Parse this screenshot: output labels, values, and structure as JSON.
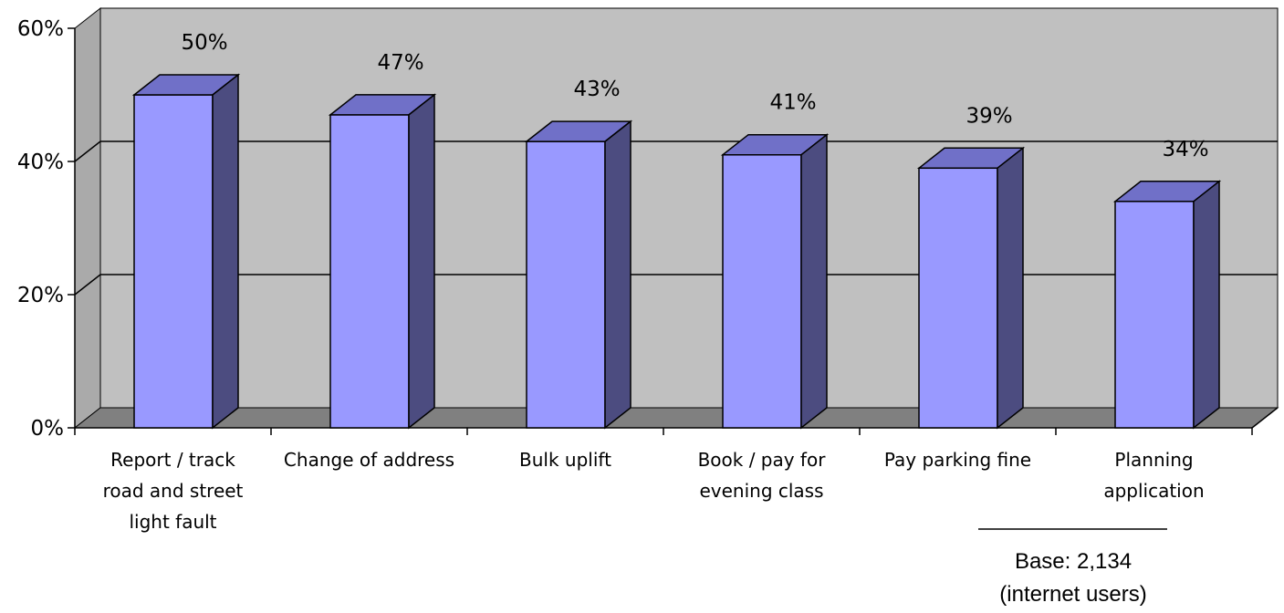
{
  "chart_data": {
    "type": "bar",
    "categories": [
      [
        "Report / track",
        "road and street",
        "light fault"
      ],
      [
        "Change of address"
      ],
      [
        "Bulk uplift"
      ],
      [
        "Book / pay for",
        "evening class"
      ],
      [
        "Pay parking fine"
      ],
      [
        "Planning",
        "application"
      ]
    ],
    "values": [
      50,
      47,
      43,
      41,
      39,
      34
    ],
    "value_labels": [
      "50%",
      "47%",
      "43%",
      "41%",
      "39%",
      "34%"
    ],
    "y_ticks": [
      "0%",
      "20%",
      "40%",
      "60%"
    ],
    "ylim": [
      0,
      60
    ],
    "grid": true,
    "three_d": true,
    "colors": {
      "bar_front": "#9999ff",
      "bar_top": "#7070c8",
      "bar_side": "#4c4c80",
      "wall": "#c0c0c0",
      "floor": "#808080",
      "wall_side": "#aaaaaa"
    }
  },
  "base_note": {
    "line1": "Base: 2,134",
    "line2": "(internet users)"
  }
}
